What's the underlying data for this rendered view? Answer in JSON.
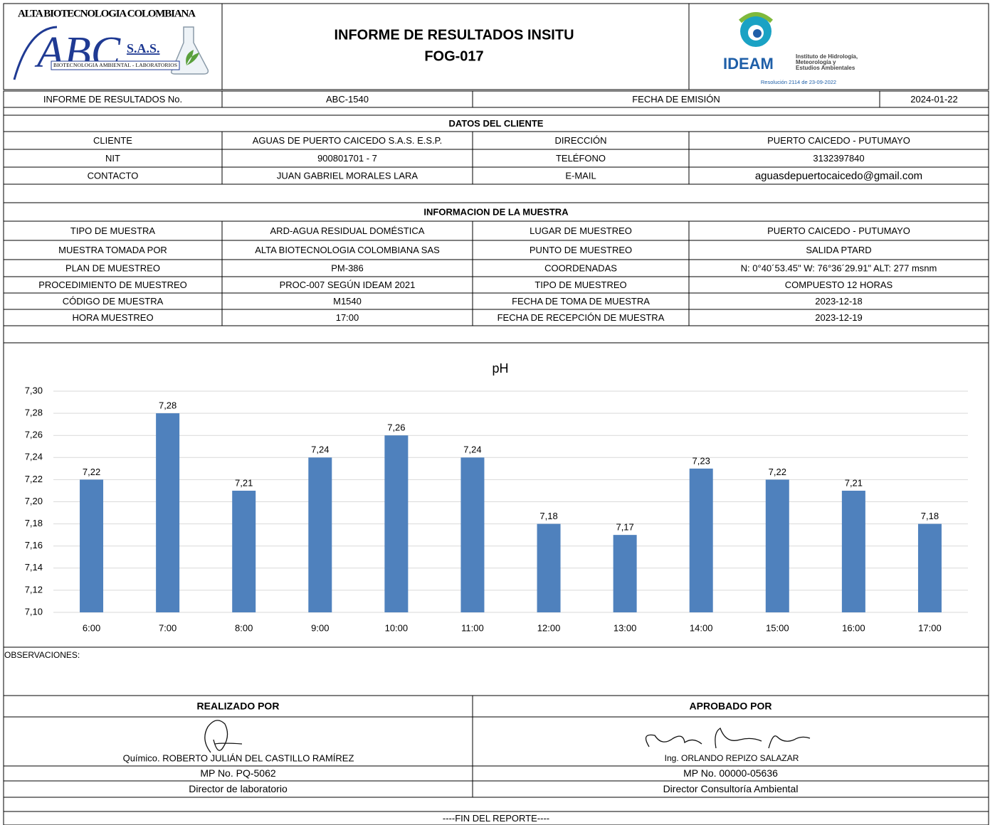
{
  "header": {
    "logo_left": {
      "name": "ALTA BIOTECNOLOGIA COLOMBIANA",
      "mark": "ABC",
      "suffix": "S.A.S.",
      "tagline": "BIOTECNOLOGIA AMBIENTAL - LABORATORIOS"
    },
    "title": "INFORME DE RESULTADOS INSITU",
    "code": "FOG-017",
    "logo_right": {
      "name": "IDEAM",
      "lines": [
        "Instituto de Hidrología,",
        "Meteorología y",
        "Estudios Ambientales"
      ],
      "resolution": "Resolución 2114 de 23-09-2022"
    }
  },
  "report": {
    "label": "INFORME DE RESULTADOS No.",
    "number": "ABC-1540",
    "date_label": "FECHA DE EMISIÓN",
    "date": "2024-01-22"
  },
  "client": {
    "title": "DATOS DEL CLIENTE",
    "rows": [
      [
        "CLIENTE",
        "AGUAS DE PUERTO CAICEDO S.A.S. E.S.P.",
        "DIRECCIÓN",
        "PUERTO CAICEDO - PUTUMAYO"
      ],
      [
        "NIT",
        "900801701 - 7",
        "TELÉFONO",
        "3132397840"
      ],
      [
        "CONTACTO",
        "JUAN GABRIEL MORALES LARA",
        "E-MAIL",
        "aguasdepuertocaicedo@gmail.com"
      ]
    ]
  },
  "sample": {
    "title": "INFORMACION DE LA MUESTRA",
    "rows": [
      [
        "TIPO DE MUESTRA",
        "ARD-AGUA RESIDUAL DOMÉSTICA",
        "LUGAR DE MUESTREO",
        "PUERTO CAICEDO - PUTUMAYO"
      ],
      [
        "MUESTRA TOMADA POR",
        "ALTA BIOTECNOLOGIA COLOMBIANA SAS",
        "PUNTO DE MUESTREO",
        "SALIDA PTARD"
      ],
      [
        "PLAN DE  MUESTREO",
        "PM-386",
        "COORDENADAS",
        "N: 0°40´53.45\" W: 76°36´29.91\" ALT: 277 msnm"
      ],
      [
        "PROCEDIMIENTO DE MUESTREO",
        "PROC-007 SEGÚN IDEAM 2021",
        "TIPO DE MUESTREO",
        "COMPUESTO 12 HORAS"
      ],
      [
        "CÓDIGO DE MUESTRA",
        "M1540",
        "FECHA DE TOMA DE MUESTRA",
        "2023-12-18"
      ],
      [
        "HORA MUESTREO",
        "17:00",
        "FECHA DE RECEPCIÓN DE MUESTRA",
        "2023-12-19"
      ]
    ]
  },
  "chart_data": {
    "type": "bar",
    "title": "pH",
    "categories": [
      "6:00",
      "7:00",
      "8:00",
      "9:00",
      "10:00",
      "11:00",
      "12:00",
      "13:00",
      "14:00",
      "15:00",
      "16:00",
      "17:00"
    ],
    "values": [
      7.22,
      7.28,
      7.21,
      7.24,
      7.26,
      7.24,
      7.18,
      7.17,
      7.23,
      7.22,
      7.21,
      7.18
    ],
    "value_labels": [
      "7,22",
      "7,28",
      "7,21",
      "7,24",
      "7,26",
      "7,24",
      "7,18",
      "7,17",
      "7,23",
      "7,22",
      "7,21",
      "7,18"
    ],
    "color": "#4f81bd",
    "ylim": [
      7.1,
      7.3
    ],
    "yticks": [
      {
        "value": 7.1,
        "label": "7,10"
      },
      {
        "value": 7.12,
        "label": "7,12"
      },
      {
        "value": 7.14,
        "label": "7,14"
      },
      {
        "value": 7.16,
        "label": "7,16"
      },
      {
        "value": 7.18,
        "label": "7,18"
      },
      {
        "value": 7.2,
        "label": "7,20"
      },
      {
        "value": 7.22,
        "label": "7,22"
      },
      {
        "value": 7.24,
        "label": "7,24"
      },
      {
        "value": 7.26,
        "label": "7,26"
      },
      {
        "value": 7.28,
        "label": "7,28"
      },
      {
        "value": 7.3,
        "label": "7,30"
      }
    ],
    "grid": true
  },
  "observations": {
    "label": "OBSERVACIONES:"
  },
  "signatures": {
    "left": {
      "title": "REALIZADO POR",
      "name": "Químico. ROBERTO JULIÁN DEL CASTILLO RAMÍREZ",
      "mp": "MP No. PQ-5062",
      "role": "Director de laboratorio"
    },
    "right": {
      "title": "APROBADO POR",
      "name": "Ing. ORLANDO REPIZO SALAZAR",
      "mp": "MP No. 00000-05636",
      "role": "Director Consultoría Ambiental"
    }
  },
  "footer": "----FIN DEL REPORTE----"
}
